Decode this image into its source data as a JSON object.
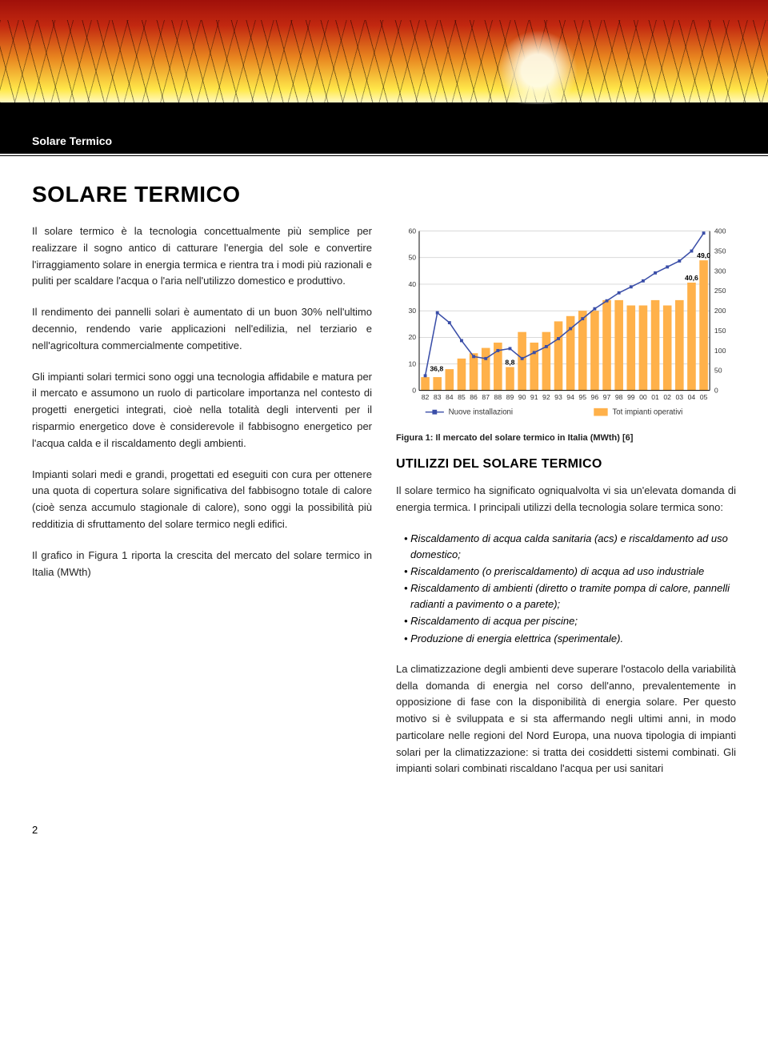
{
  "header": {
    "banner_label": "Solare Termico"
  },
  "title": "SOLARE TERMICO",
  "left": {
    "p1": "Il solare termico è la tecnologia concettualmente più semplice per realizzare il sogno antico di catturare l'energia del sole e convertire l'irraggiamento solare in energia termica e rientra tra i modi più razionali e puliti per scaldare l'acqua o l'aria nell'utilizzo domestico e produttivo.",
    "p2": "Il rendimento dei pannelli solari è aumentato di un buon 30% nell'ultimo decennio, rendendo varie applicazioni nell'edilizia, nel terziario e nell'agricoltura commercialmente competitive.",
    "p3": "Gli impianti solari termici sono oggi una tecnologia affidabile e matura per il mercato e assumono un ruolo di particolare importanza nel contesto di progetti energetici integrati, cioè nella totalità degli interventi per il risparmio energetico dove è considerevole il fabbisogno energetico per l'acqua calda e il riscaldamento degli ambienti.",
    "p4": "Impianti solari medi e grandi, progettati ed eseguiti con cura per ottenere una quota di copertura solare significativa del fabbisogno totale di calore (cioè senza accumulo stagionale di calore), sono oggi la possibilità più redditizia di sfruttamento del solare termico negli edifici.",
    "p5": "Il grafico in Figura 1 riporta la crescita del mercato del solare termico in Italia (MWth)"
  },
  "chart": {
    "type": "bar+line",
    "title": "",
    "x_labels": [
      "82",
      "83",
      "84",
      "85",
      "86",
      "87",
      "88",
      "89",
      "90",
      "91",
      "92",
      "93",
      "94",
      "95",
      "96",
      "97",
      "98",
      "99",
      "00",
      "01",
      "02",
      "03",
      "04",
      "05"
    ],
    "bars": {
      "values": [
        5,
        5,
        8,
        12,
        14,
        16,
        18,
        8.8,
        22,
        18,
        22,
        26,
        28,
        30,
        30,
        34,
        34,
        32,
        32,
        34,
        32,
        34,
        40.6,
        49.0
      ],
      "color": "#ffb14a",
      "axis": "left",
      "ymin": 0,
      "ymax": 60,
      "ystep": 10,
      "annot": [
        {
          "i": 7,
          "label": "8,8",
          "y": 8.8
        },
        {
          "i": 22,
          "label": "40,6",
          "y": 40.6
        },
        {
          "i": 23,
          "label": "49,0",
          "y": 49.0
        }
      ]
    },
    "line": {
      "values": [
        36.8,
        195,
        170,
        125,
        85,
        80,
        100,
        105,
        80,
        95,
        110,
        130,
        155,
        180,
        205,
        225,
        245,
        260,
        275,
        295,
        310,
        325,
        350,
        395
      ],
      "color": "#3a4ea8",
      "axis": "right",
      "ymin": 0,
      "ymax": 400,
      "ystep": 50,
      "annot": [
        {
          "i": 0,
          "label": "36,8",
          "y": 36.8
        }
      ]
    },
    "legend": {
      "line_label": "Nuove installazioni",
      "bar_label": "Tot impianti operativi"
    },
    "plot": {
      "bg": "#ffffff",
      "grid_color": "#808080",
      "tick_font": 9,
      "label_font": 10,
      "axis_color": "#000000",
      "bar_width": 0.7
    }
  },
  "figcaption": "Figura 1: Il mercato del solare termico in Italia (MWth) [6]",
  "right": {
    "h2": "UTILIZZI DEL SOLARE TERMICO",
    "p1": "Il solare termico ha significato ogniqualvolta vi sia un'elevata domanda di energia termica.  I principali utilizzi della tecnologia solare termica sono:",
    "bullets": [
      "Riscaldamento di acqua calda sanitaria (acs) e riscaldamento ad uso domestico;",
      "Riscaldamento (o preriscaldamento) di acqua ad uso industriale",
      "Riscaldamento di ambienti (diretto o tramite pompa di calore, pannelli radianti a pavimento o a parete);",
      "Riscaldamento di acqua per piscine;",
      "Produzione di energia elettrica (sperimentale)."
    ],
    "p2": "La climatizzazione degli ambienti deve superare l'ostacolo della variabilità della domanda di energia nel corso dell'anno, prevalentemente in opposizione di fase con la disponibilità di energia solare.  Per questo motivo si è sviluppata e si sta affermando negli ultimi anni, in modo particolare nelle regioni del Nord Europa, una nuova tipologia di impianti solari per la climatizzazione: si tratta dei cosiddetti sistemi combinati.  Gli impianti solari combinati riscaldano l'acqua per usi sanitari"
  },
  "page_number": "2"
}
